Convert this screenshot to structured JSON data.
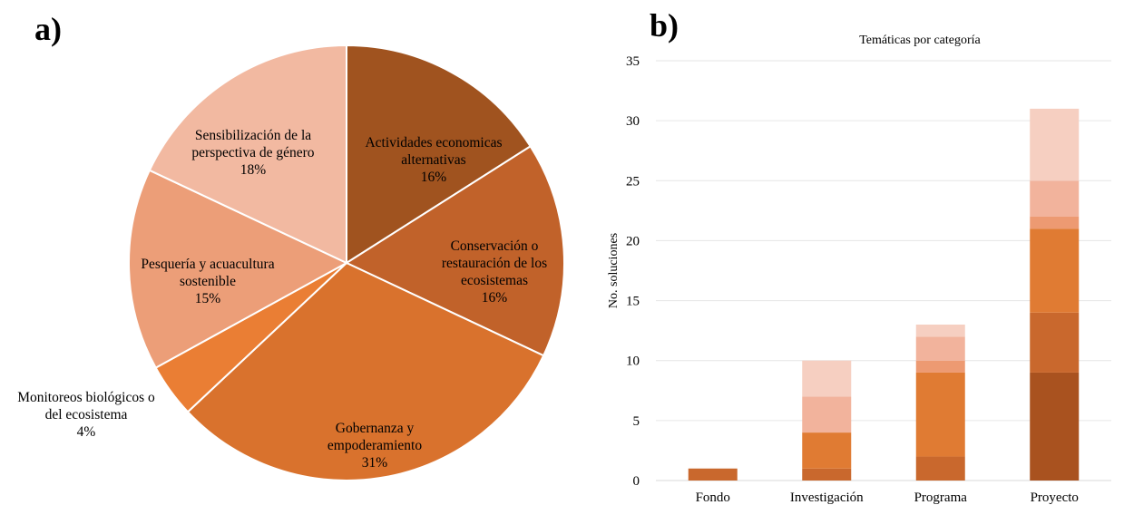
{
  "panel_labels": {
    "a": "a)",
    "b": "b)"
  },
  "chart_data": [
    {
      "type": "pie",
      "title": "",
      "slices": [
        {
          "label": [
            "Actividades economicas",
            "alternativas"
          ],
          "pct_label": "16%",
          "value": 16,
          "color": "#a0531f"
        },
        {
          "label": [
            "Conservación o",
            "restauración de los",
            "ecosistemas"
          ],
          "pct_label": "16%",
          "value": 16,
          "color": "#c1622a"
        },
        {
          "label": [
            "Gobernanza y",
            "empoderamiento"
          ],
          "pct_label": "31%",
          "value": 31,
          "color": "#d9722d"
        },
        {
          "label": [
            "Monitoreos biológicos o",
            "del ecosistema"
          ],
          "pct_label": "4%",
          "value": 4,
          "color": "#ea7e34"
        },
        {
          "label": [
            "Pesquería y acuacultura",
            "sostenible"
          ],
          "pct_label": "15%",
          "value": 15,
          "color": "#ec9e78"
        },
        {
          "label": [
            "Sensibilización de la",
            "perspectiva de género"
          ],
          "pct_label": "18%",
          "value": 18,
          "color": "#f2b9a1"
        }
      ]
    },
    {
      "type": "bar",
      "stacked": true,
      "title": "Temáticas por categoría",
      "xlabel": "",
      "ylabel": "No. soluciones",
      "ylim": [
        0,
        35
      ],
      "yticks": [
        0,
        5,
        10,
        15,
        20,
        25,
        30,
        35
      ],
      "grid": true,
      "categories": [
        "Fondo",
        "Investigación",
        "Programa",
        "Proyecto"
      ],
      "series": [
        {
          "values": [
            0,
            0,
            0,
            9
          ],
          "color": "#a9521f"
        },
        {
          "values": [
            1,
            1,
            2,
            5
          ],
          "color": "#c9682d"
        },
        {
          "values": [
            0,
            3,
            7,
            7
          ],
          "color": "#e07b33"
        },
        {
          "values": [
            0,
            0,
            1,
            1
          ],
          "color": "#ed9a72"
        },
        {
          "values": [
            0,
            3,
            2,
            3
          ],
          "color": "#f2b39c"
        },
        {
          "values": [
            0,
            3,
            1,
            6
          ],
          "color": "#f6cfc1"
        }
      ]
    }
  ]
}
